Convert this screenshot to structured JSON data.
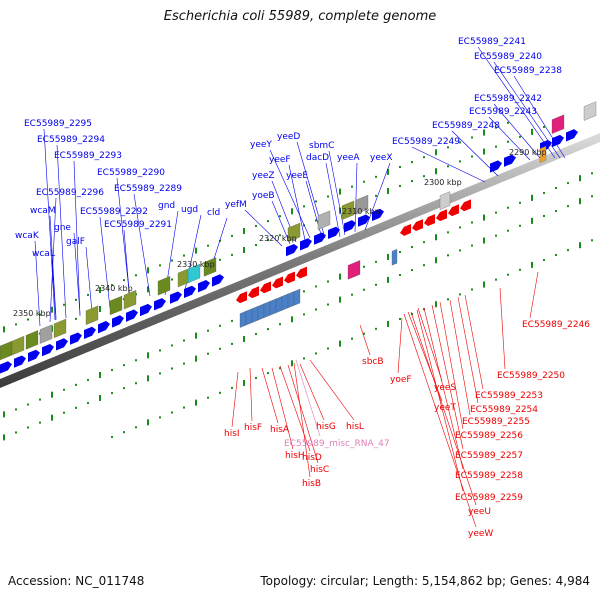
{
  "title": "Escherichia coli 55989, complete genome",
  "footer": {
    "accession": "Accession: NC_011748",
    "summary": "Topology: circular; Length: 5,154,862 bp; Genes: 4,984"
  },
  "colors": {
    "forward_gene": "#0000ee",
    "reverse_gene": "#ee0000",
    "misc_rna": "#e080b8",
    "tick_mark": "#1a8a1a",
    "backbone": "#8c8c8c"
  },
  "ruler": [
    "2290 kbp",
    "2300 kbp",
    "2310 kbp",
    "2320 kbp",
    "2330 kbp",
    "2340 kbp",
    "2350 kbp"
  ],
  "forward_labels": [
    "EC55989_2241",
    "EC55989_2240",
    "EC55989_2238",
    "EC55989_2242",
    "EC55989_2243",
    "EC55989_2248",
    "EC55989_2249",
    "yeeD",
    "yeeY",
    "sbmC",
    "dacD",
    "yeeA",
    "yeeX",
    "yeeF",
    "yeeZ",
    "yeeE",
    "yoeB",
    "yefM",
    "cld",
    "EC55989_2295",
    "EC55989_2294",
    "EC55989_2293",
    "EC55989_2290",
    "EC55989_2289",
    "EC55989_2296",
    "gnd",
    "ugd",
    "wcaM",
    "EC55989_2292",
    "EC55989_2291",
    "gne",
    "wcaK",
    "galF",
    "wcaL"
  ],
  "reverse_labels": [
    "EC55989_2246",
    "EC55989_2250",
    "EC55989_2253",
    "EC55989_2254",
    "EC55989_2255",
    "EC55989_2256",
    "EC55989_2257",
    "EC55989_2258",
    "EC55989_2259",
    "yeeU",
    "yeeW",
    "yeeS",
    "yeeT",
    "yoeF",
    "sbcB",
    "hisI",
    "hisF",
    "hisA",
    "hisG",
    "hisL",
    "hisH",
    "hisD",
    "hisC",
    "hisB"
  ],
  "misc_rna_label": "EC55989_misc_RNA_47"
}
